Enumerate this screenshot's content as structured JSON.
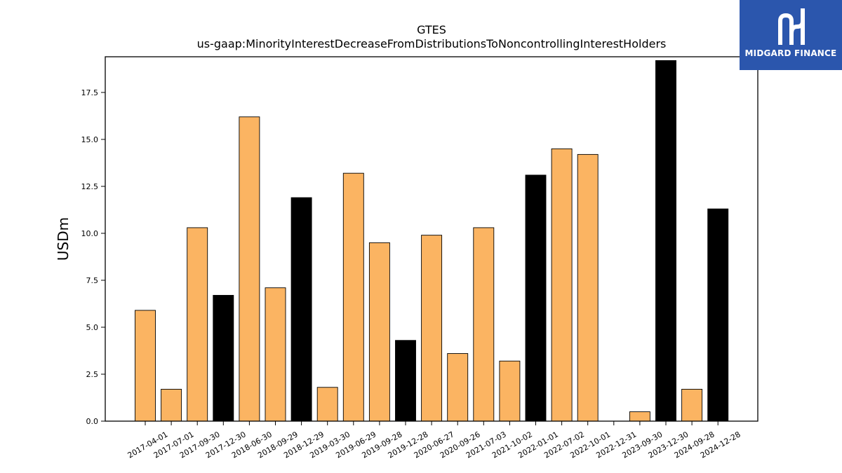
{
  "chart_data": {
    "type": "bar",
    "title": "GTES",
    "subtitle": "us-gaap:MinorityInterestDecreaseFromDistributionsToNoncontrollingInterestHolders",
    "xlabel": "",
    "ylabel": "USDm",
    "ylim": [
      0,
      19.4
    ],
    "yticks": [
      "0.0",
      "2.5",
      "5.0",
      "7.5",
      "10.0",
      "12.5",
      "15.0",
      "17.5"
    ],
    "grid": false,
    "colors": {
      "default": "#fbb462",
      "highlight": "#000000",
      "edge": "#000000"
    },
    "categories": [
      "2017-04-01",
      "2017-07-01",
      "2017-09-30",
      "2017-12-30",
      "2018-06-30",
      "2018-09-29",
      "2018-12-29",
      "2019-03-30",
      "2019-06-29",
      "2019-09-28",
      "2019-12-28",
      "2020-06-27",
      "2020-09-26",
      "2021-07-03",
      "2021-10-02",
      "2022-01-01",
      "2022-07-02",
      "2022-10-01",
      "2022-12-31",
      "2023-09-30",
      "2023-12-30",
      "2024-09-28",
      "2024-12-28"
    ],
    "values": [
      5.9,
      1.7,
      10.3,
      6.7,
      16.2,
      7.1,
      11.9,
      1.8,
      13.2,
      9.5,
      4.3,
      9.9,
      3.6,
      10.3,
      3.2,
      13.1,
      14.5,
      14.2,
      0.0,
      0.5,
      19.2,
      1.7,
      11.3
    ],
    "highlight": [
      false,
      false,
      false,
      true,
      false,
      false,
      true,
      false,
      false,
      false,
      true,
      false,
      false,
      false,
      false,
      true,
      false,
      false,
      true,
      false,
      true,
      false,
      true
    ]
  },
  "logo": {
    "text": "MIDGARD FINANCE"
  }
}
